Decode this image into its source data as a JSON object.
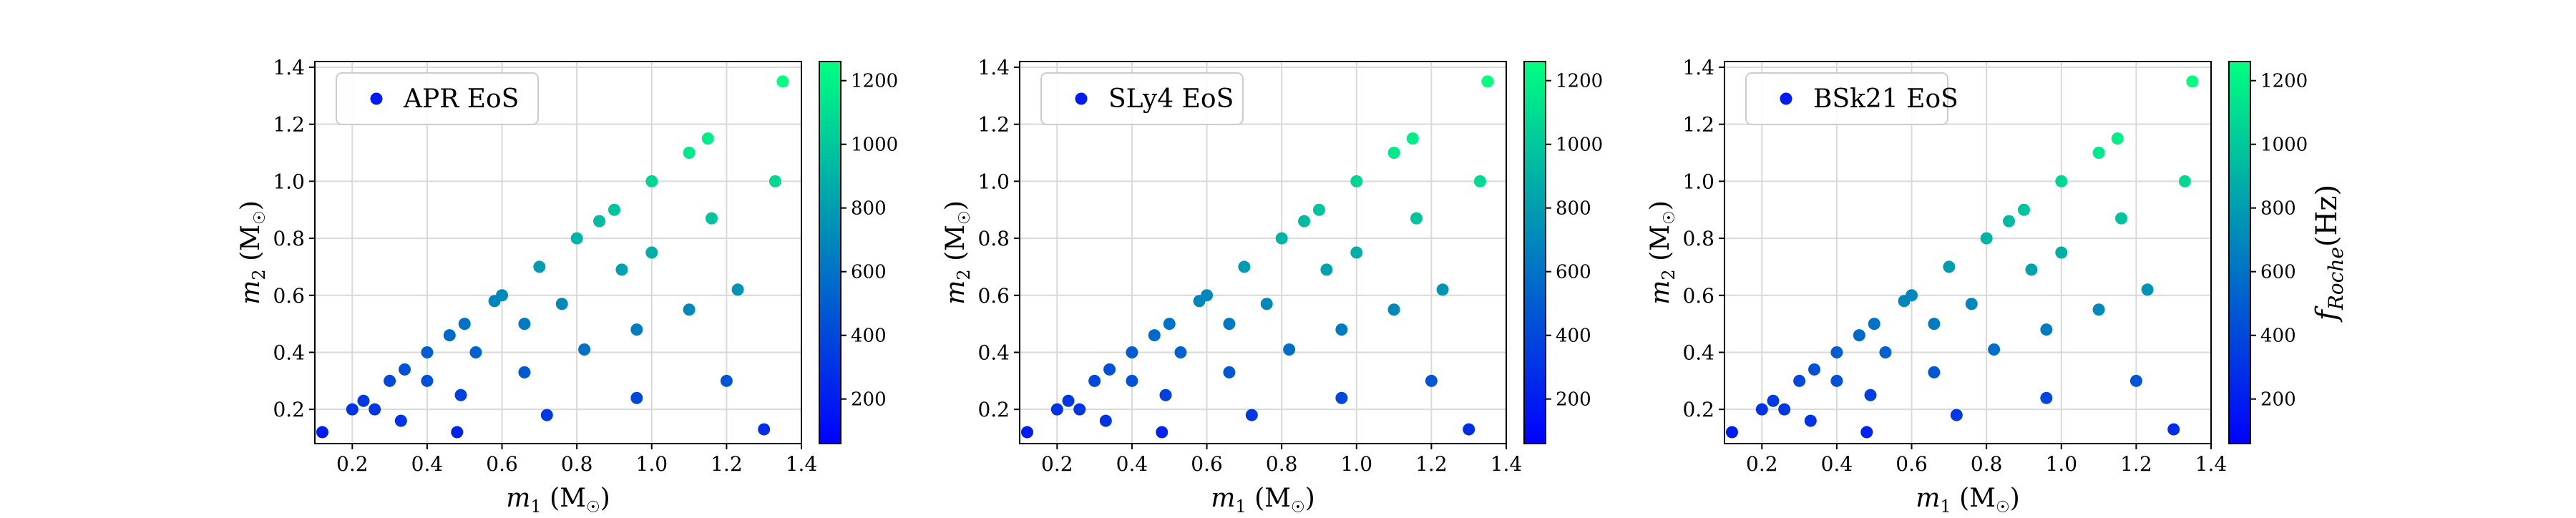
{
  "colors": {
    "cmap_low": "#0000ff",
    "cmap_high": "#00ff80",
    "grid": "#d9d9d9",
    "frame": "#000000"
  },
  "axes": {
    "xlabel_main": "m",
    "xlabel_sub": "1",
    "xlabel_unit": "(M",
    "ylabel_main": "m",
    "ylabel_sub": "2",
    "ylabel_unit": "(M",
    "unit_close": ")",
    "sun_symbol": "☉",
    "cb_label_main": "f",
    "cb_label_sub": "Roche",
    "cb_label_unit": "(Hz)"
  },
  "chart_data": [
    {
      "type": "scatter",
      "legend": "APR EoS",
      "legend_placement": "upper-left",
      "xlim": [
        0.1,
        1.4
      ],
      "ylim": [
        0.08,
        1.42
      ],
      "xticks": [
        0.2,
        0.4,
        0.6,
        0.8,
        1.0,
        1.2,
        1.4
      ],
      "yticks": [
        0.2,
        0.4,
        0.6,
        0.8,
        1.0,
        1.2,
        1.4
      ],
      "grid": true,
      "color_range": [
        60,
        1260
      ],
      "color_ticks": [
        200,
        400,
        600,
        800,
        1000,
        1200
      ],
      "colorbar_label": false,
      "points": [
        {
          "x": 0.12,
          "y": 0.12,
          "c": 180
        },
        {
          "x": 0.2,
          "y": 0.2,
          "c": 300
        },
        {
          "x": 0.23,
          "y": 0.23,
          "c": 330
        },
        {
          "x": 0.26,
          "y": 0.2,
          "c": 320
        },
        {
          "x": 0.3,
          "y": 0.3,
          "c": 400
        },
        {
          "x": 0.33,
          "y": 0.16,
          "c": 300
        },
        {
          "x": 0.34,
          "y": 0.34,
          "c": 440
        },
        {
          "x": 0.4,
          "y": 0.4,
          "c": 500
        },
        {
          "x": 0.4,
          "y": 0.3,
          "c": 440
        },
        {
          "x": 0.46,
          "y": 0.46,
          "c": 560
        },
        {
          "x": 0.48,
          "y": 0.12,
          "c": 220
        },
        {
          "x": 0.49,
          "y": 0.25,
          "c": 360
        },
        {
          "x": 0.5,
          "y": 0.5,
          "c": 600
        },
        {
          "x": 0.53,
          "y": 0.4,
          "c": 520
        },
        {
          "x": 0.58,
          "y": 0.58,
          "c": 690
        },
        {
          "x": 0.6,
          "y": 0.6,
          "c": 700
        },
        {
          "x": 0.66,
          "y": 0.5,
          "c": 640
        },
        {
          "x": 0.66,
          "y": 0.33,
          "c": 480
        },
        {
          "x": 0.7,
          "y": 0.7,
          "c": 800
        },
        {
          "x": 0.72,
          "y": 0.18,
          "c": 330
        },
        {
          "x": 0.76,
          "y": 0.57,
          "c": 700
        },
        {
          "x": 0.8,
          "y": 0.8,
          "c": 900
        },
        {
          "x": 0.82,
          "y": 0.41,
          "c": 580
        },
        {
          "x": 0.86,
          "y": 0.86,
          "c": 940
        },
        {
          "x": 0.9,
          "y": 0.9,
          "c": 980
        },
        {
          "x": 0.92,
          "y": 0.69,
          "c": 820
        },
        {
          "x": 0.96,
          "y": 0.48,
          "c": 640
        },
        {
          "x": 0.96,
          "y": 0.24,
          "c": 400
        },
        {
          "x": 1.0,
          "y": 1.0,
          "c": 1060
        },
        {
          "x": 1.0,
          "y": 0.75,
          "c": 880
        },
        {
          "x": 1.1,
          "y": 1.1,
          "c": 1150
        },
        {
          "x": 1.1,
          "y": 0.55,
          "c": 700
        },
        {
          "x": 1.15,
          "y": 1.15,
          "c": 1180
        },
        {
          "x": 1.16,
          "y": 0.87,
          "c": 980
        },
        {
          "x": 1.2,
          "y": 0.3,
          "c": 460
        },
        {
          "x": 1.23,
          "y": 0.62,
          "c": 760
        },
        {
          "x": 1.3,
          "y": 0.13,
          "c": 270
        },
        {
          "x": 1.33,
          "y": 1.0,
          "c": 1080
        },
        {
          "x": 1.35,
          "y": 1.35,
          "c": 1260
        }
      ]
    },
    {
      "type": "scatter",
      "legend": "SLy4 EoS",
      "legend_placement": "upper-left",
      "xlim": [
        0.1,
        1.4
      ],
      "ylim": [
        0.08,
        1.42
      ],
      "xticks": [
        0.2,
        0.4,
        0.6,
        0.8,
        1.0,
        1.2,
        1.4
      ],
      "yticks": [
        0.2,
        0.4,
        0.6,
        0.8,
        1.0,
        1.2,
        1.4
      ],
      "grid": true,
      "color_range": [
        60,
        1260
      ],
      "color_ticks": [
        200,
        400,
        600,
        800,
        1000,
        1200
      ],
      "colorbar_label": false,
      "points": [
        {
          "x": 0.12,
          "y": 0.12,
          "c": 180
        },
        {
          "x": 0.2,
          "y": 0.2,
          "c": 300
        },
        {
          "x": 0.23,
          "y": 0.23,
          "c": 330
        },
        {
          "x": 0.26,
          "y": 0.2,
          "c": 320
        },
        {
          "x": 0.3,
          "y": 0.3,
          "c": 400
        },
        {
          "x": 0.33,
          "y": 0.16,
          "c": 300
        },
        {
          "x": 0.34,
          "y": 0.34,
          "c": 440
        },
        {
          "x": 0.4,
          "y": 0.4,
          "c": 500
        },
        {
          "x": 0.4,
          "y": 0.3,
          "c": 440
        },
        {
          "x": 0.46,
          "y": 0.46,
          "c": 560
        },
        {
          "x": 0.48,
          "y": 0.12,
          "c": 220
        },
        {
          "x": 0.49,
          "y": 0.25,
          "c": 360
        },
        {
          "x": 0.5,
          "y": 0.5,
          "c": 600
        },
        {
          "x": 0.53,
          "y": 0.4,
          "c": 520
        },
        {
          "x": 0.58,
          "y": 0.58,
          "c": 690
        },
        {
          "x": 0.6,
          "y": 0.6,
          "c": 700
        },
        {
          "x": 0.66,
          "y": 0.5,
          "c": 640
        },
        {
          "x": 0.66,
          "y": 0.33,
          "c": 480
        },
        {
          "x": 0.7,
          "y": 0.7,
          "c": 800
        },
        {
          "x": 0.72,
          "y": 0.18,
          "c": 330
        },
        {
          "x": 0.76,
          "y": 0.57,
          "c": 700
        },
        {
          "x": 0.8,
          "y": 0.8,
          "c": 900
        },
        {
          "x": 0.82,
          "y": 0.41,
          "c": 580
        },
        {
          "x": 0.86,
          "y": 0.86,
          "c": 940
        },
        {
          "x": 0.9,
          "y": 0.9,
          "c": 980
        },
        {
          "x": 0.92,
          "y": 0.69,
          "c": 820
        },
        {
          "x": 0.96,
          "y": 0.48,
          "c": 640
        },
        {
          "x": 0.96,
          "y": 0.24,
          "c": 400
        },
        {
          "x": 1.0,
          "y": 1.0,
          "c": 1060
        },
        {
          "x": 1.0,
          "y": 0.75,
          "c": 880
        },
        {
          "x": 1.1,
          "y": 1.1,
          "c": 1150
        },
        {
          "x": 1.1,
          "y": 0.55,
          "c": 700
        },
        {
          "x": 1.15,
          "y": 1.15,
          "c": 1180
        },
        {
          "x": 1.16,
          "y": 0.87,
          "c": 980
        },
        {
          "x": 1.2,
          "y": 0.3,
          "c": 460
        },
        {
          "x": 1.23,
          "y": 0.62,
          "c": 760
        },
        {
          "x": 1.3,
          "y": 0.13,
          "c": 270
        },
        {
          "x": 1.33,
          "y": 1.0,
          "c": 1080
        },
        {
          "x": 1.35,
          "y": 1.35,
          "c": 1260
        }
      ]
    },
    {
      "type": "scatter",
      "legend": "BSk21 EoS",
      "legend_placement": "upper-left",
      "xlim": [
        0.1,
        1.4
      ],
      "ylim": [
        0.08,
        1.42
      ],
      "xticks": [
        0.2,
        0.4,
        0.6,
        0.8,
        1.0,
        1.2,
        1.4
      ],
      "yticks": [
        0.2,
        0.4,
        0.6,
        0.8,
        1.0,
        1.2,
        1.4
      ],
      "grid": true,
      "color_range": [
        60,
        1260
      ],
      "color_ticks": [
        200,
        400,
        600,
        800,
        1000,
        1200
      ],
      "colorbar_label": true,
      "points": [
        {
          "x": 0.12,
          "y": 0.12,
          "c": 180
        },
        {
          "x": 0.2,
          "y": 0.2,
          "c": 300
        },
        {
          "x": 0.23,
          "y": 0.23,
          "c": 330
        },
        {
          "x": 0.26,
          "y": 0.2,
          "c": 320
        },
        {
          "x": 0.3,
          "y": 0.3,
          "c": 400
        },
        {
          "x": 0.33,
          "y": 0.16,
          "c": 300
        },
        {
          "x": 0.34,
          "y": 0.34,
          "c": 440
        },
        {
          "x": 0.4,
          "y": 0.4,
          "c": 500
        },
        {
          "x": 0.4,
          "y": 0.3,
          "c": 440
        },
        {
          "x": 0.46,
          "y": 0.46,
          "c": 560
        },
        {
          "x": 0.48,
          "y": 0.12,
          "c": 220
        },
        {
          "x": 0.49,
          "y": 0.25,
          "c": 360
        },
        {
          "x": 0.5,
          "y": 0.5,
          "c": 600
        },
        {
          "x": 0.53,
          "y": 0.4,
          "c": 520
        },
        {
          "x": 0.58,
          "y": 0.58,
          "c": 690
        },
        {
          "x": 0.6,
          "y": 0.6,
          "c": 700
        },
        {
          "x": 0.66,
          "y": 0.5,
          "c": 640
        },
        {
          "x": 0.66,
          "y": 0.33,
          "c": 480
        },
        {
          "x": 0.7,
          "y": 0.7,
          "c": 800
        },
        {
          "x": 0.72,
          "y": 0.18,
          "c": 330
        },
        {
          "x": 0.76,
          "y": 0.57,
          "c": 700
        },
        {
          "x": 0.8,
          "y": 0.8,
          "c": 900
        },
        {
          "x": 0.82,
          "y": 0.41,
          "c": 580
        },
        {
          "x": 0.86,
          "y": 0.86,
          "c": 940
        },
        {
          "x": 0.9,
          "y": 0.9,
          "c": 980
        },
        {
          "x": 0.92,
          "y": 0.69,
          "c": 820
        },
        {
          "x": 0.96,
          "y": 0.48,
          "c": 640
        },
        {
          "x": 0.96,
          "y": 0.24,
          "c": 400
        },
        {
          "x": 1.0,
          "y": 1.0,
          "c": 1060
        },
        {
          "x": 1.0,
          "y": 0.75,
          "c": 880
        },
        {
          "x": 1.1,
          "y": 1.1,
          "c": 1150
        },
        {
          "x": 1.1,
          "y": 0.55,
          "c": 700
        },
        {
          "x": 1.15,
          "y": 1.15,
          "c": 1180
        },
        {
          "x": 1.16,
          "y": 0.87,
          "c": 980
        },
        {
          "x": 1.2,
          "y": 0.3,
          "c": 460
        },
        {
          "x": 1.23,
          "y": 0.62,
          "c": 760
        },
        {
          "x": 1.3,
          "y": 0.13,
          "c": 270
        },
        {
          "x": 1.33,
          "y": 1.0,
          "c": 1080
        },
        {
          "x": 1.35,
          "y": 1.35,
          "c": 1260
        }
      ]
    }
  ]
}
